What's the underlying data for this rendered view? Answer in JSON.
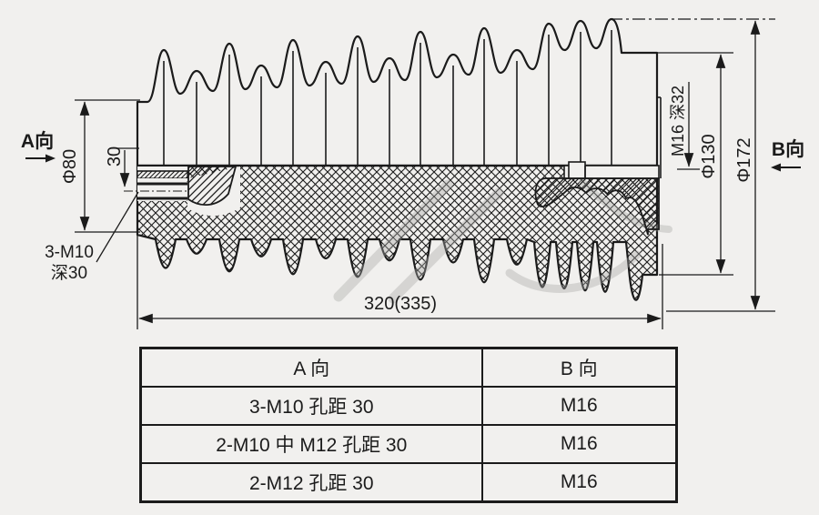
{
  "page": {
    "background": "#f1f0ee",
    "ink": "#1b1b1b"
  },
  "drawing": {
    "view_a_label": "A向",
    "view_b_label": "B向",
    "dim_phi80": "Φ80",
    "dim_offset30": "30",
    "thread_label_line1": "3-M10",
    "thread_label_line2": "深30",
    "dim_m16_depth": "M16 深32",
    "dim_phi130": "Φ130",
    "dim_phi172": "Φ172",
    "dim_overall_length": "320(335)"
  },
  "spec_table": {
    "headers": [
      "A 向",
      "B 向"
    ],
    "rows": [
      [
        "3-M10 孔距 30",
        "M16"
      ],
      [
        "2-M10 中 M12 孔距 30",
        "M16"
      ],
      [
        "2-M12 孔距 30",
        "M16"
      ]
    ]
  }
}
